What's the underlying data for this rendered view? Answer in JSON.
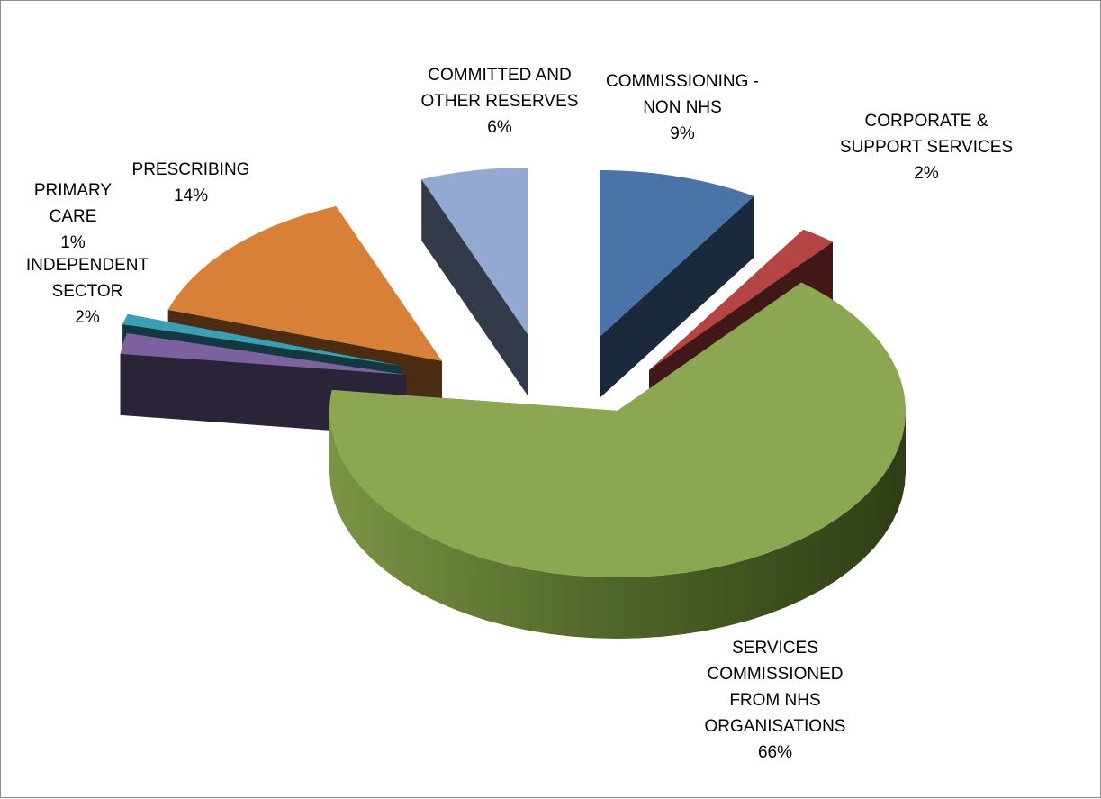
{
  "chart_data": {
    "type": "pie",
    "title": "",
    "style": "3d-exploded",
    "legend": "none",
    "slices": [
      {
        "name": "COMMISSIONING - NON NHS",
        "label_lines": [
          "COMMISSIONING -",
          "NON NHS"
        ],
        "value": 9,
        "value_label": "9%",
        "color": "#4A74A9"
      },
      {
        "name": "CORPORATE & SUPPORT SERVICES",
        "label_lines": [
          "CORPORATE &",
          "SUPPORT SERVICES"
        ],
        "value": 2,
        "value_label": "2%",
        "color": "#B44542"
      },
      {
        "name": "SERVICES COMMISSIONED FROM NHS ORGANISATIONS",
        "label_lines": [
          "SERVICES",
          "COMMISSIONED",
          "FROM NHS",
          "ORGANISATIONS"
        ],
        "value": 66,
        "value_label": "66%",
        "color": "#8BA752"
      },
      {
        "name": "INDEPENDENT SECTOR",
        "label_lines": [
          "INDEPENDENT",
          "SECTOR"
        ],
        "value": 2,
        "value_label": "2%",
        "color": "#7C63A0"
      },
      {
        "name": "PRIMARY CARE",
        "label_lines": [
          "PRIMARY",
          "CARE"
        ],
        "value": 1,
        "value_label": "1%",
        "color": "#3A9FB4"
      },
      {
        "name": "PRESCRIBING",
        "label_lines": [
          "PRESCRIBING"
        ],
        "value": 14,
        "value_label": "14%",
        "color": "#D98038"
      },
      {
        "name": "COMMITTED AND OTHER RESERVES",
        "label_lines": [
          "COMMITTED AND",
          "OTHER RESERVES"
        ],
        "value": 6,
        "value_label": "6%",
        "color": "#93A9D2"
      }
    ]
  }
}
